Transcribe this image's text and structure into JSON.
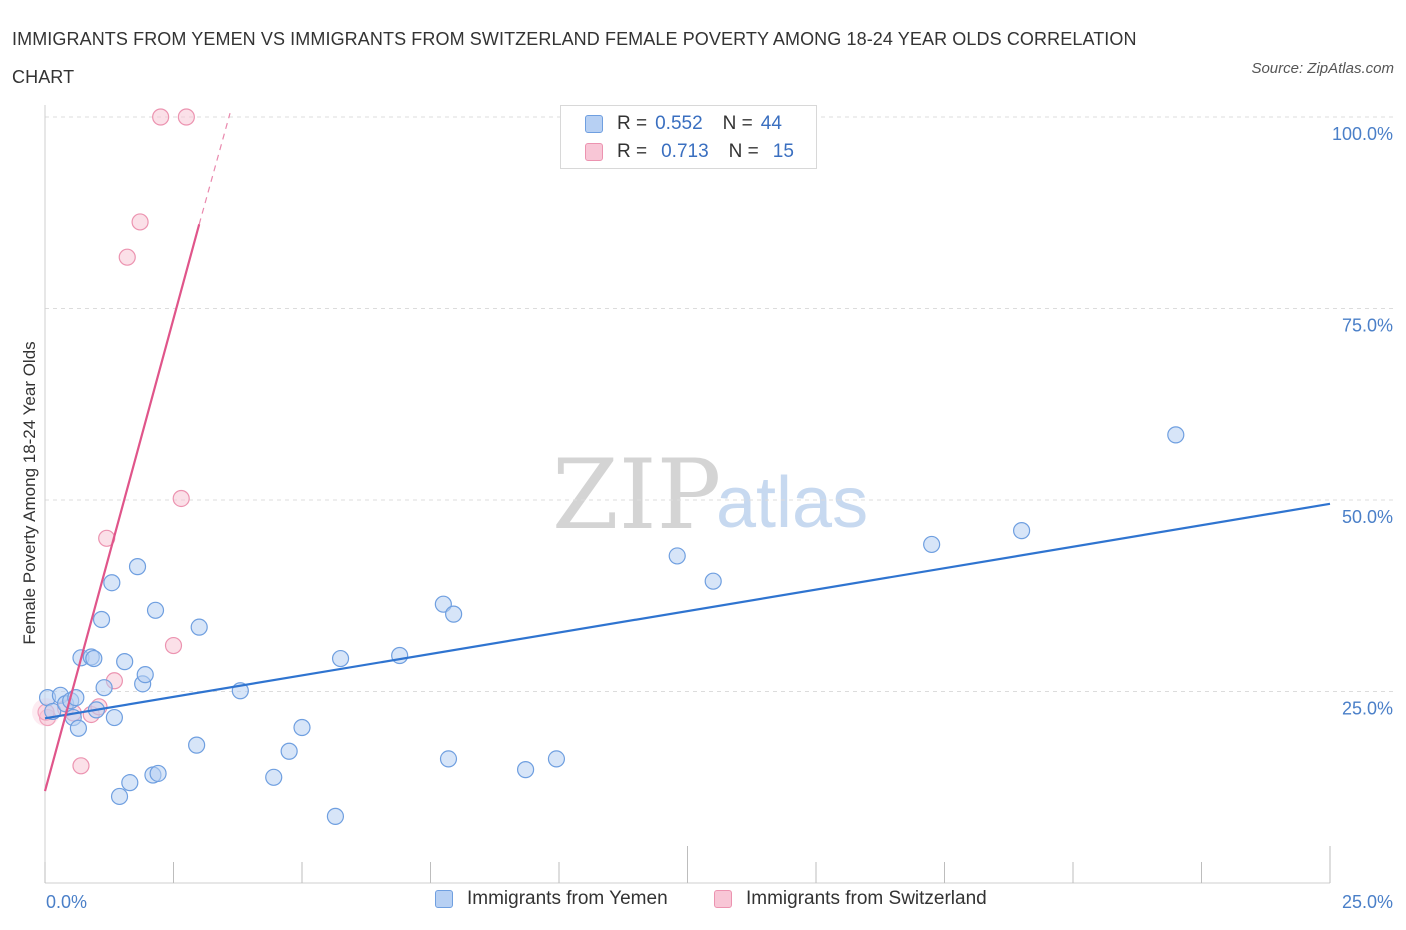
{
  "title": "IMMIGRANTS FROM YEMEN VS IMMIGRANTS FROM SWITZERLAND FEMALE POVERTY AMONG 18-24 YEAR OLDS CORRELATION CHART",
  "source": "Source: ZipAtlas.com",
  "watermark": {
    "zip": "ZIP",
    "atlas": "atlas"
  },
  "legend": {
    "r_label": "R =",
    "n_label": "N =",
    "rows": [
      {
        "r": "0.552",
        "n": "44",
        "color": "#4a86d8"
      },
      {
        "r": "0.713",
        "n": "15",
        "color": "#e77ca0"
      }
    ]
  },
  "colors": {
    "yemen_fill": "#b7d0f3",
    "yemen_stroke": "#6f9fe0",
    "yemen_line": "#2f74d0",
    "swiss_fill": "#f8c6d6",
    "swiss_stroke": "#ec93b0",
    "swiss_line": "#e0558a",
    "grid": "#dcdcdc"
  },
  "chart_data": {
    "type": "scatter",
    "title": "IMMIGRANTS FROM YEMEN VS IMMIGRANTS FROM SWITZERLAND FEMALE POVERTY AMONG 18-24 YEAR OLDS CORRELATION CHART",
    "xlabel": "",
    "ylabel": "Female Poverty Among 18-24 Year Olds",
    "xlim": [
      0,
      25
    ],
    "ylim": [
      0,
      100
    ],
    "x_tick_labels": [
      "0.0%",
      "25.0%"
    ],
    "y_tick_labels": [
      "25.0%",
      "50.0%",
      "75.0%",
      "100.0%"
    ],
    "y_ticks": [
      25,
      50,
      75,
      100
    ],
    "grid": true,
    "series": [
      {
        "name": "Immigrants from Yemen",
        "r": 0.552,
        "n": 44,
        "trend": {
          "x": [
            0,
            25
          ],
          "y": [
            21.5,
            49.5
          ]
        },
        "points": [
          [
            0.05,
            24.2
          ],
          [
            0.15,
            22.4
          ],
          [
            0.3,
            24.5
          ],
          [
            0.4,
            23.4
          ],
          [
            0.5,
            23.8
          ],
          [
            0.55,
            21.6
          ],
          [
            0.6,
            24.2
          ],
          [
            0.65,
            20.2
          ],
          [
            0.7,
            29.4
          ],
          [
            0.9,
            29.5
          ],
          [
            0.95,
            29.3
          ],
          [
            1.0,
            22.6
          ],
          [
            1.1,
            34.4
          ],
          [
            1.15,
            25.5
          ],
          [
            1.3,
            39.2
          ],
          [
            1.35,
            21.6
          ],
          [
            1.45,
            11.3
          ],
          [
            1.55,
            28.9
          ],
          [
            1.65,
            13.1
          ],
          [
            1.8,
            41.3
          ],
          [
            1.9,
            26.0
          ],
          [
            1.95,
            27.2
          ],
          [
            2.1,
            14.1
          ],
          [
            2.15,
            35.6
          ],
          [
            2.2,
            14.3
          ],
          [
            2.95,
            18.0
          ],
          [
            3.0,
            33.4
          ],
          [
            3.8,
            25.1
          ],
          [
            4.45,
            13.8
          ],
          [
            4.75,
            17.2
          ],
          [
            5.0,
            20.3
          ],
          [
            5.65,
            8.7
          ],
          [
            5.75,
            29.3
          ],
          [
            6.9,
            29.7
          ],
          [
            7.75,
            36.4
          ],
          [
            7.85,
            16.2
          ],
          [
            7.95,
            35.1
          ],
          [
            9.35,
            14.8
          ],
          [
            9.95,
            16.2
          ],
          [
            12.3,
            42.7
          ],
          [
            13.0,
            39.4
          ],
          [
            17.25,
            44.2
          ],
          [
            19.0,
            46.0
          ],
          [
            22.0,
            58.5
          ]
        ]
      },
      {
        "name": "Immigrants from Switzerland",
        "r": 0.713,
        "n": 15,
        "trend": {
          "x": [
            0,
            3.0
          ],
          "y": [
            12.0,
            86.0
          ],
          "dash_to": {
            "x": 3.6,
            "y": 100.5
          }
        },
        "points": [
          [
            0.05,
            21.6
          ],
          [
            0.4,
            22.8
          ],
          [
            0.55,
            22.2
          ],
          [
            0.7,
            15.3
          ],
          [
            0.9,
            22.0
          ],
          [
            1.05,
            23.0
          ],
          [
            1.2,
            45.0
          ],
          [
            1.35,
            26.4
          ],
          [
            1.6,
            81.7
          ],
          [
            1.85,
            86.3
          ],
          [
            2.25,
            100.0
          ],
          [
            2.5,
            31.0
          ],
          [
            2.65,
            50.2
          ],
          [
            2.75,
            100.0
          ],
          [
            0.02,
            22.3
          ]
        ]
      }
    ]
  }
}
